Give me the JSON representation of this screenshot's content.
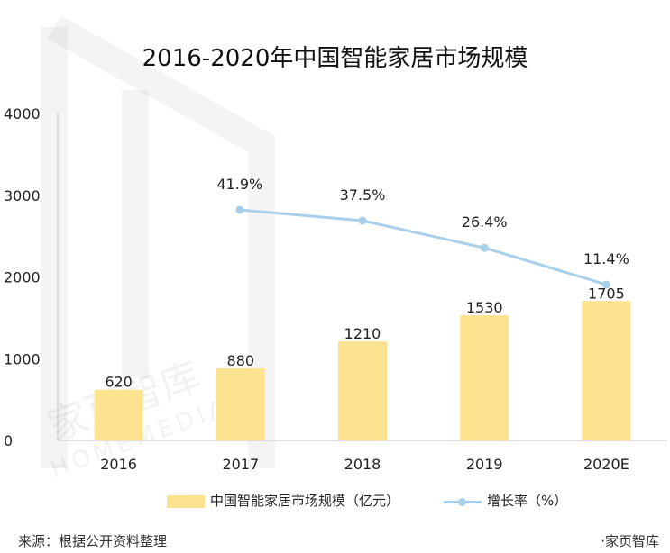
{
  "title": "2016-2020年中国智能家居市场规模",
  "source": "来源：根据公开资料整理",
  "brand": "·家页智库",
  "watermark": {
    "cn": "家页智库",
    "en": "HOMEMEDIA"
  },
  "chart_data": {
    "type": "bar",
    "categories": [
      "2016",
      "2017",
      "2018",
      "2019",
      "2020E"
    ],
    "series": [
      {
        "name": "中国智能家居市场规模（亿元）",
        "type": "bar",
        "values": [
          620,
          880,
          1210,
          1530,
          1705
        ],
        "labels": [
          "620",
          "880",
          "1210",
          "1530",
          "1705"
        ],
        "color": "#fde28f"
      },
      {
        "name": "增长率（%）",
        "type": "line",
        "values": [
          null,
          41.9,
          37.5,
          26.4,
          11.4
        ],
        "labels": [
          null,
          "41.9%",
          "37.5%",
          "26.4%",
          "11.4%"
        ],
        "color": "#a9d0ea"
      }
    ],
    "y_ticks": [
      "0",
      "1000",
      "2000",
      "3000",
      "4000"
    ],
    "ylim": [
      0,
      4000
    ],
    "grid": false,
    "legend_position": "bottom"
  }
}
